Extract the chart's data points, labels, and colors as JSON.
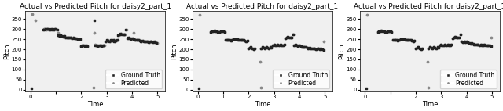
{
  "title": "Actual vs Predicted Pitch for daisy2_part_1",
  "xlabel": "Time",
  "ylabel": "Pitch",
  "xlim": [
    -0.2,
    5.3
  ],
  "ylim": [
    -10,
    390
  ],
  "yticks": [
    0,
    50,
    100,
    150,
    200,
    250,
    300,
    350
  ],
  "xticks": [
    0,
    1,
    2,
    3,
    4,
    5
  ],
  "gt_color": "#222222",
  "pred_color": "#888888",
  "bg_color": "#f0f0f0",
  "title_fontsize": 6.5,
  "label_fontsize": 6,
  "tick_fontsize": 5,
  "legend_fontsize": 5.5,
  "plots": [
    {
      "gt_x": [
        0.05,
        0.5,
        0.55,
        0.6,
        0.65,
        0.7,
        0.75,
        0.8,
        0.85,
        0.9,
        0.95,
        1.0,
        1.05,
        1.1,
        1.15,
        1.2,
        1.25,
        1.3,
        1.35,
        1.4,
        1.45,
        1.5,
        1.55,
        1.6,
        1.65,
        1.7,
        1.75,
        1.8,
        1.85,
        1.9,
        1.95,
        2.0,
        2.05,
        2.1,
        2.15,
        2.2,
        2.25,
        2.5,
        2.55,
        2.6,
        2.65,
        2.7,
        2.75,
        2.8,
        2.85,
        2.9,
        2.95,
        3.0,
        3.05,
        3.1,
        3.15,
        3.2,
        3.25,
        3.3,
        3.35,
        3.4,
        3.45,
        3.5,
        3.55,
        3.6,
        3.65,
        3.7,
        3.75,
        3.8,
        3.85,
        3.9,
        3.95,
        4.0,
        4.05,
        4.1,
        4.15,
        4.2,
        4.25,
        4.3,
        4.35,
        4.4,
        4.45,
        4.5,
        4.55,
        4.6,
        4.65,
        4.7,
        4.75,
        4.8,
        4.85,
        4.9,
        4.95
      ],
      "gt_y": [
        5,
        295,
        298,
        300,
        302,
        300,
        298,
        300,
        295,
        298,
        300,
        300,
        295,
        270,
        265,
        268,
        265,
        263,
        265,
        260,
        258,
        258,
        260,
        258,
        255,
        257,
        255,
        255,
        252,
        250,
        252,
        215,
        218,
        220,
        215,
        218,
        215,
        345,
        220,
        218,
        215,
        220,
        218,
        215,
        220,
        218,
        240,
        245,
        242,
        240,
        245,
        242,
        245,
        240,
        242,
        245,
        270,
        275,
        278,
        275,
        272,
        275,
        295,
        255,
        258,
        255,
        252,
        255,
        250,
        248,
        245,
        248,
        245,
        242,
        240,
        242,
        240,
        238,
        240,
        238,
        235,
        240,
        238,
        235,
        238,
        235,
        232
      ],
      "pred_x": [
        0.08,
        0.2,
        0.52,
        0.58,
        0.62,
        0.67,
        0.72,
        0.78,
        0.83,
        0.88,
        0.93,
        0.98,
        1.03,
        1.08,
        1.13,
        1.18,
        1.23,
        1.28,
        1.33,
        1.38,
        1.43,
        1.48,
        1.53,
        1.58,
        1.63,
        1.68,
        1.73,
        1.78,
        1.83,
        1.88,
        1.93,
        1.98,
        2.03,
        2.08,
        2.13,
        2.18,
        2.23,
        2.53,
        2.58,
        2.63,
        2.68,
        2.73,
        2.78,
        2.83,
        2.88,
        2.93,
        2.98,
        3.03,
        3.08,
        3.13,
        3.18,
        3.23,
        3.28,
        3.33,
        3.38,
        3.43,
        3.48,
        3.53,
        3.58,
        3.63,
        3.68,
        3.73,
        3.78,
        3.83,
        3.88,
        3.93,
        3.98,
        4.03,
        4.08,
        4.13,
        4.18,
        4.23,
        4.28,
        4.33,
        4.38,
        4.43,
        4.48,
        4.53,
        4.58,
        4.63,
        4.68,
        4.73,
        4.78,
        4.83,
        4.88,
        4.93,
        4.98,
        1.1,
        2.48,
        2.5,
        4.05
      ],
      "pred_y": [
        375,
        345,
        300,
        300,
        295,
        300,
        295,
        298,
        300,
        295,
        298,
        300,
        298,
        270,
        265,
        268,
        265,
        263,
        265,
        260,
        258,
        258,
        260,
        258,
        255,
        257,
        255,
        255,
        252,
        250,
        252,
        215,
        218,
        220,
        215,
        218,
        215,
        222,
        220,
        218,
        215,
        220,
        218,
        215,
        220,
        218,
        240,
        245,
        242,
        240,
        245,
        242,
        245,
        240,
        242,
        245,
        270,
        275,
        278,
        275,
        272,
        275,
        295,
        255,
        258,
        255,
        252,
        255,
        250,
        248,
        245,
        248,
        245,
        242,
        240,
        242,
        240,
        238,
        240,
        238,
        235,
        240,
        238,
        235,
        238,
        235,
        232,
        280,
        10,
        280,
        280
      ]
    },
    {
      "gt_x": [
        0.05,
        0.5,
        0.55,
        0.6,
        0.65,
        0.7,
        0.75,
        0.8,
        0.85,
        0.9,
        0.95,
        1.0,
        1.05,
        1.1,
        1.15,
        1.2,
        1.25,
        1.3,
        1.35,
        1.4,
        1.45,
        1.5,
        1.55,
        1.6,
        1.65,
        1.7,
        1.75,
        1.8,
        1.85,
        1.9,
        1.95,
        2.0,
        2.05,
        2.1,
        2.15,
        2.2,
        2.25,
        2.5,
        2.55,
        2.6,
        2.65,
        2.7,
        2.75,
        2.8,
        2.85,
        2.9,
        2.95,
        3.0,
        3.05,
        3.1,
        3.15,
        3.2,
        3.25,
        3.3,
        3.35,
        3.4,
        3.45,
        3.5,
        3.55,
        3.6,
        3.65,
        3.7,
        3.75,
        3.8,
        3.85,
        3.9,
        3.95,
        4.0,
        4.05,
        4.1,
        4.15,
        4.2,
        4.25,
        4.3,
        4.35,
        4.4,
        4.45,
        4.5,
        4.55,
        4.6,
        4.65,
        4.7,
        4.75,
        4.8,
        4.85,
        4.9,
        4.95
      ],
      "gt_y": [
        5,
        285,
        288,
        290,
        292,
        290,
        288,
        285,
        285,
        288,
        290,
        290,
        285,
        248,
        245,
        248,
        245,
        243,
        245,
        250,
        252,
        250,
        252,
        248,
        245,
        247,
        245,
        245,
        242,
        240,
        242,
        205,
        208,
        210,
        205,
        200,
        205,
        205,
        210,
        208,
        205,
        210,
        208,
        205,
        210,
        208,
        218,
        222,
        220,
        218,
        222,
        220,
        222,
        218,
        220,
        222,
        255,
        260,
        262,
        260,
        257,
        260,
        275,
        220,
        222,
        220,
        217,
        220,
        215,
        213,
        210,
        213,
        210,
        207,
        205,
        207,
        205,
        203,
        205,
        203,
        200,
        205,
        203,
        200,
        203,
        200,
        197
      ],
      "pred_x": [
        0.08,
        0.5,
        0.55,
        0.6,
        0.65,
        0.7,
        0.75,
        0.8,
        0.85,
        0.9,
        0.95,
        1.0,
        1.05,
        1.1,
        1.15,
        1.2,
        1.25,
        1.3,
        1.35,
        1.4,
        1.45,
        1.5,
        1.55,
        1.6,
        1.65,
        1.7,
        1.75,
        1.8,
        1.85,
        1.9,
        1.95,
        2.0,
        2.05,
        2.1,
        2.15,
        2.2,
        2.25,
        2.5,
        2.55,
        2.6,
        2.65,
        2.7,
        2.75,
        2.8,
        2.85,
        2.9,
        2.95,
        3.0,
        3.05,
        3.1,
        3.15,
        3.2,
        3.25,
        3.3,
        3.35,
        3.4,
        3.45,
        3.5,
        3.55,
        3.6,
        3.65,
        3.7,
        3.75,
        3.8,
        3.85,
        3.9,
        3.95,
        4.0,
        4.05,
        4.1,
        4.15,
        4.2,
        4.25,
        4.3,
        4.35,
        4.4,
        4.45,
        4.5,
        4.55,
        4.6,
        4.65,
        4.7,
        4.75,
        4.8,
        4.85,
        4.9,
        4.95,
        2.45,
        2.48
      ],
      "pred_y": [
        370,
        285,
        288,
        290,
        292,
        290,
        288,
        285,
        285,
        288,
        290,
        290,
        285,
        248,
        245,
        248,
        245,
        243,
        245,
        250,
        252,
        250,
        252,
        248,
        245,
        247,
        245,
        245,
        242,
        240,
        242,
        205,
        208,
        210,
        205,
        200,
        205,
        205,
        210,
        208,
        205,
        210,
        208,
        205,
        210,
        208,
        218,
        222,
        220,
        218,
        222,
        220,
        222,
        218,
        220,
        222,
        255,
        260,
        262,
        260,
        257,
        260,
        275,
        220,
        222,
        220,
        217,
        220,
        215,
        213,
        210,
        213,
        210,
        207,
        205,
        207,
        205,
        203,
        205,
        203,
        200,
        205,
        203,
        200,
        203,
        200,
        240,
        140,
        10
      ]
    },
    {
      "gt_x": [
        0.05,
        0.5,
        0.55,
        0.6,
        0.65,
        0.7,
        0.75,
        0.8,
        0.85,
        0.9,
        0.95,
        1.0,
        1.05,
        1.1,
        1.15,
        1.2,
        1.25,
        1.3,
        1.35,
        1.4,
        1.45,
        1.5,
        1.55,
        1.6,
        1.65,
        1.7,
        1.75,
        1.8,
        1.85,
        1.9,
        1.95,
        2.0,
        2.05,
        2.1,
        2.15,
        2.2,
        2.25,
        2.5,
        2.55,
        2.6,
        2.65,
        2.7,
        2.75,
        2.8,
        2.85,
        2.9,
        2.95,
        3.0,
        3.05,
        3.1,
        3.15,
        3.2,
        3.25,
        3.3,
        3.35,
        3.4,
        3.45,
        3.5,
        3.55,
        3.6,
        3.65,
        3.7,
        3.75,
        3.8,
        3.85,
        3.9,
        3.95,
        4.0,
        4.05,
        4.1,
        4.15,
        4.2,
        4.25,
        4.3,
        4.35,
        4.4,
        4.45,
        4.5,
        4.55,
        4.6,
        4.65,
        4.7,
        4.75,
        4.8,
        4.85,
        4.9,
        4.95
      ],
      "gt_y": [
        5,
        285,
        288,
        290,
        292,
        290,
        288,
        285,
        285,
        288,
        290,
        290,
        285,
        248,
        245,
        248,
        245,
        243,
        245,
        250,
        252,
        250,
        252,
        248,
        245,
        247,
        245,
        245,
        242,
        240,
        242,
        205,
        208,
        210,
        205,
        200,
        205,
        205,
        210,
        208,
        205,
        210,
        208,
        205,
        210,
        208,
        218,
        222,
        220,
        218,
        222,
        220,
        222,
        218,
        220,
        222,
        255,
        260,
        262,
        260,
        257,
        260,
        275,
        240,
        235,
        240,
        235,
        238,
        235,
        232,
        228,
        232,
        228,
        225,
        222,
        225,
        222,
        220,
        222,
        220,
        218,
        222,
        220,
        218,
        220,
        218,
        215
      ],
      "pred_x": [
        0.08,
        0.5,
        0.55,
        0.6,
        0.65,
        0.7,
        0.75,
        0.8,
        0.85,
        0.9,
        0.95,
        1.0,
        1.05,
        1.1,
        1.15,
        1.2,
        1.25,
        1.3,
        1.35,
        1.4,
        1.45,
        1.5,
        1.55,
        1.6,
        1.65,
        1.7,
        1.75,
        1.8,
        1.85,
        1.9,
        1.95,
        2.0,
        2.05,
        2.1,
        2.15,
        2.2,
        2.25,
        2.5,
        2.55,
        2.6,
        2.65,
        2.7,
        2.75,
        2.8,
        2.85,
        2.9,
        2.95,
        3.0,
        3.05,
        3.1,
        3.15,
        3.2,
        3.25,
        3.3,
        3.35,
        3.4,
        3.45,
        3.5,
        3.55,
        3.6,
        3.65,
        3.7,
        3.75,
        3.8,
        3.85,
        3.9,
        3.95,
        4.0,
        4.05,
        4.1,
        4.15,
        4.2,
        4.25,
        4.3,
        4.35,
        4.4,
        4.45,
        4.5,
        4.55,
        4.6,
        4.65,
        4.7,
        4.75,
        4.8,
        4.85,
        4.9,
        4.95,
        2.45,
        2.48
      ],
      "pred_y": [
        370,
        285,
        288,
        290,
        292,
        290,
        288,
        285,
        285,
        288,
        290,
        290,
        285,
        248,
        245,
        248,
        245,
        243,
        245,
        250,
        252,
        250,
        252,
        248,
        245,
        247,
        245,
        245,
        242,
        240,
        242,
        205,
        208,
        210,
        205,
        200,
        205,
        205,
        210,
        208,
        205,
        210,
        208,
        205,
        210,
        208,
        218,
        222,
        220,
        218,
        222,
        220,
        222,
        218,
        220,
        222,
        255,
        260,
        262,
        260,
        257,
        260,
        275,
        240,
        235,
        240,
        235,
        238,
        235,
        232,
        228,
        232,
        228,
        225,
        222,
        225,
        222,
        220,
        222,
        220,
        218,
        222,
        220,
        218,
        220,
        218,
        260,
        140,
        10
      ]
    }
  ]
}
